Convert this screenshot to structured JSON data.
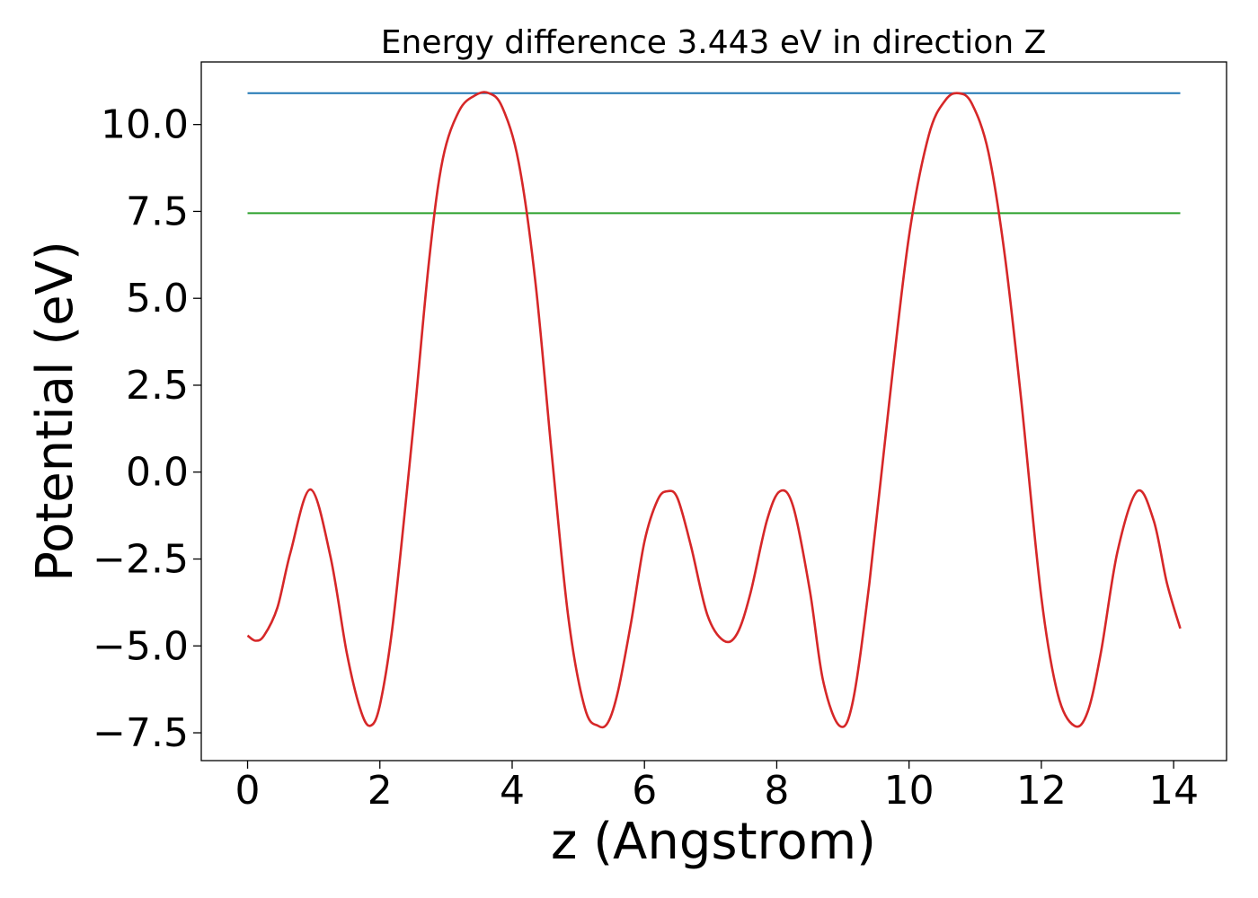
{
  "chart_data": {
    "type": "line",
    "title": "Energy difference 3.443 eV in direction Z",
    "xlabel": "z (Angstrom)",
    "ylabel": "Potential (eV)",
    "xlim": [
      -0.7,
      14.8
    ],
    "ylim": [
      -8.3,
      11.8
    ],
    "xticks": [
      0,
      2,
      4,
      6,
      8,
      10,
      12,
      14
    ],
    "xtick_labels": [
      "0",
      "2",
      "4",
      "6",
      "8",
      "10",
      "12",
      "14"
    ],
    "yticks": [
      -7.5,
      -5.0,
      -2.5,
      0.0,
      2.5,
      5.0,
      7.5,
      10.0
    ],
    "ytick_labels": [
      "−7.5",
      "−5.0",
      "−2.5",
      "0.0",
      "2.5",
      "5.0",
      "7.5",
      "10.0"
    ],
    "grid": false,
    "series": [
      {
        "color": "#d62728",
        "x": [
          0.0,
          0.12,
          0.25,
          0.45,
          0.65,
          0.95,
          1.25,
          1.5,
          1.7,
          1.85,
          2.0,
          2.2,
          2.5,
          2.75,
          2.95,
          3.2,
          3.45,
          3.65,
          3.85,
          4.1,
          4.35,
          4.6,
          4.85,
          5.1,
          5.3,
          5.45,
          5.6,
          5.8,
          6.0,
          6.2,
          6.35,
          6.5,
          6.7,
          6.95,
          7.2,
          7.4,
          7.6,
          7.85,
          8.05,
          8.25,
          8.5,
          8.7,
          8.95,
          9.15,
          9.4,
          9.7,
          10.0,
          10.3,
          10.55,
          10.75,
          10.95,
          11.2,
          11.45,
          11.7,
          12.0,
          12.25,
          12.5,
          12.7,
          12.9,
          13.15,
          13.45,
          13.7,
          13.9,
          14.1
        ],
        "y": [
          -4.7,
          -4.85,
          -4.7,
          -3.9,
          -2.3,
          -0.5,
          -2.4,
          -5.2,
          -6.8,
          -7.3,
          -6.7,
          -4.3,
          1.2,
          6.2,
          9.0,
          10.4,
          10.85,
          10.9,
          10.5,
          8.9,
          5.5,
          0.5,
          -4.2,
          -6.8,
          -7.3,
          -7.2,
          -6.3,
          -4.3,
          -2.0,
          -0.8,
          -0.55,
          -0.75,
          -2.1,
          -4.1,
          -4.85,
          -4.65,
          -3.5,
          -1.4,
          -0.55,
          -1.0,
          -3.4,
          -6.0,
          -7.3,
          -6.6,
          -3.2,
          2.0,
          6.8,
          9.7,
          10.7,
          10.9,
          10.6,
          9.2,
          6.2,
          2.0,
          -3.6,
          -6.4,
          -7.3,
          -6.9,
          -5.2,
          -2.3,
          -0.55,
          -1.4,
          -3.2,
          -4.5
        ]
      },
      {
        "color": "#1f77b4",
        "x": [
          0.0,
          14.1
        ],
        "y": [
          10.9,
          10.9
        ]
      },
      {
        "color": "#2ca02c",
        "x": [
          0.0,
          14.1
        ],
        "y": [
          7.45,
          7.45
        ]
      }
    ]
  }
}
